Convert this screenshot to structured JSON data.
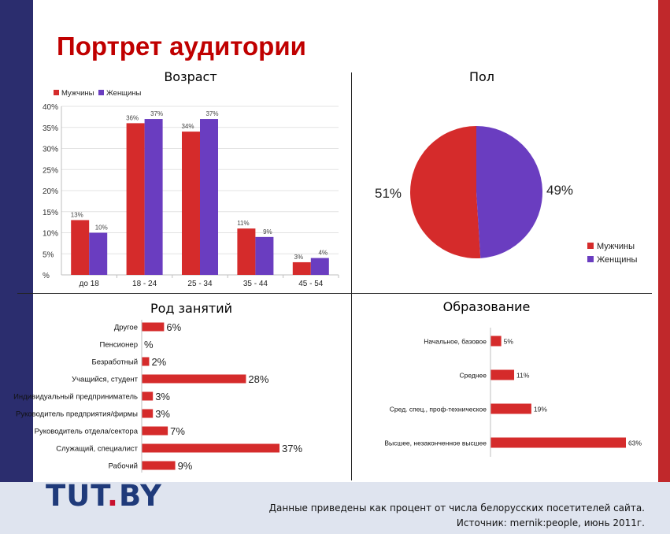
{
  "page": {
    "title": "Портрет аудитории",
    "footnote_line1": "Данные приведены как процент от числа белорусских посетителей сайта.",
    "footnote_line2": "Источник: mernik:people, июнь 2011г."
  },
  "logo": {
    "part1": "TUT",
    "dot": ".",
    "part2": "BY"
  },
  "colors": {
    "red": "#d52b2b",
    "purple": "#6a3dc0",
    "axis": "#bfbfbf",
    "stripe_left": "#2b2d6e",
    "stripe_right": "#c0282b",
    "footer_band": "#dfe4ef"
  },
  "chart_data": [
    {
      "id": "age",
      "type": "bar",
      "title": "Возраст",
      "categories": [
        "до 18",
        "18 - 24",
        "25 - 34",
        "35 - 44",
        "45 - 54"
      ],
      "series": [
        {
          "name": "Мужчины",
          "values": [
            13,
            36,
            34,
            11,
            3
          ],
          "labels": [
            "13%",
            "36%",
            "34%",
            "11%",
            "3%"
          ]
        },
        {
          "name": "Женщины",
          "values": [
            10,
            37,
            37,
            9,
            4
          ],
          "labels": [
            "10%",
            "37%",
            "37%",
            "9%",
            "4%"
          ]
        }
      ],
      "ylim": [
        0,
        40
      ],
      "yticks": [
        0,
        5,
        10,
        15,
        20,
        25,
        30,
        35,
        40
      ],
      "ytick_labels": [
        "%",
        "5%",
        "10%",
        "15%",
        "20%",
        "25%",
        "30%",
        "35%",
        "40%"
      ],
      "grid": true,
      "legend": "top-left"
    },
    {
      "id": "gender",
      "type": "pie",
      "title": "Пол",
      "slices": [
        {
          "name": "Мужчины",
          "value": 51,
          "label": "51%"
        },
        {
          "name": "Женщины",
          "value": 49,
          "label": "49%"
        }
      ],
      "legend": "bottom-right"
    },
    {
      "id": "occupation",
      "type": "bar",
      "orientation": "horizontal",
      "title": "Род занятий",
      "categories": [
        "Другое",
        "Пенсионер",
        "Безработный",
        "Учащийся, студент",
        "Индивидуальный предприниматель",
        "Руководитель предприятия/фирмы",
        "Руководитель отдела/сектора",
        "Служащий, специалист",
        "Рабочий"
      ],
      "values": [
        6,
        0,
        2,
        28,
        3,
        3,
        7,
        37,
        9
      ],
      "value_labels": [
        "6%",
        "%",
        "2%",
        "28%",
        "3%",
        "3%",
        "7%",
        "37%",
        "9%"
      ],
      "xlim": [
        0,
        37
      ]
    },
    {
      "id": "education",
      "type": "bar",
      "orientation": "horizontal",
      "title": "Образование",
      "categories": [
        "Начальное, базовое",
        "Среднее",
        "Сред. спец., проф-техническое",
        "Высшее, незаконченное высшее"
      ],
      "values": [
        5,
        11,
        19,
        63
      ],
      "value_labels": [
        "5%",
        "11%",
        "19%",
        "63%"
      ],
      "xlim": [
        0,
        63
      ]
    }
  ]
}
